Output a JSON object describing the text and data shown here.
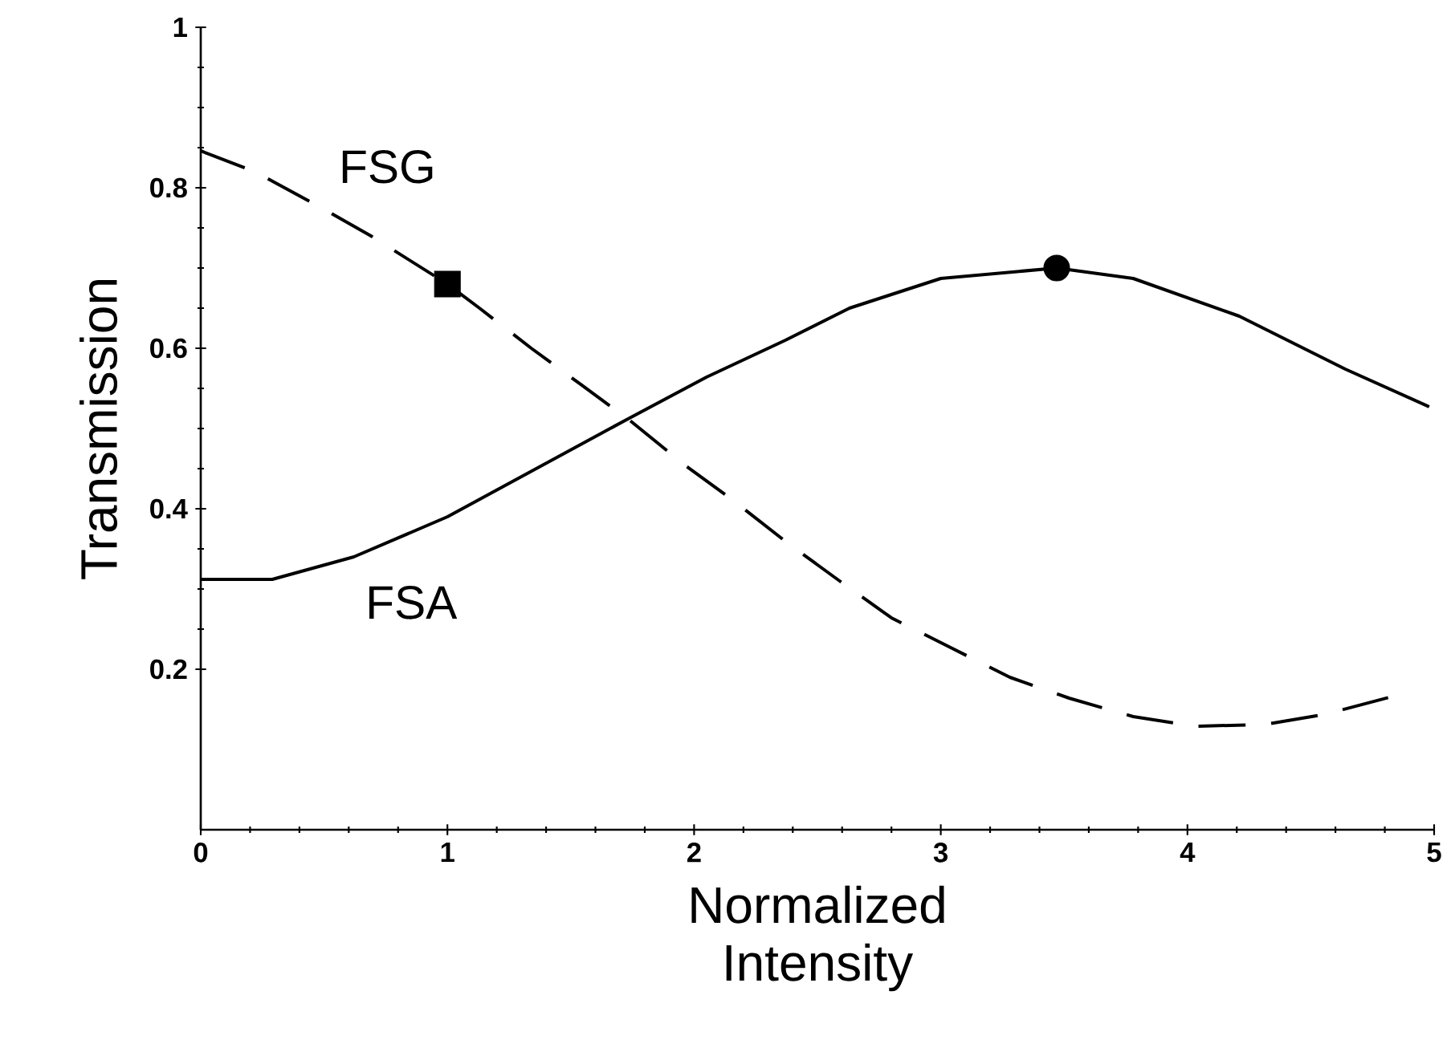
{
  "chart_data": {
    "type": "line",
    "xlabel": "Normalized Intensity",
    "ylabel": "Transmission",
    "xlim": [
      0,
      5
    ],
    "ylim": [
      0,
      1
    ],
    "xticks": [
      0,
      1,
      2,
      3,
      4,
      5
    ],
    "yticks": [
      0.2,
      0.4,
      0.6,
      0.8,
      1
    ],
    "series": [
      {
        "name": "FSG",
        "line_style": "dashed",
        "marker": "none",
        "color": "#000000",
        "x": [
          0,
          0.22,
          0.46,
          0.69,
          1.0,
          1.13,
          1.34,
          1.54,
          1.74,
          1.96,
          2.16,
          2.38,
          2.59,
          2.8,
          3.04,
          3.28,
          3.52,
          3.78,
          4.03,
          4.31,
          4.56,
          4.83
        ],
        "values": [
          0.846,
          0.82,
          0.78,
          0.74,
          0.68,
          0.65,
          0.6,
          0.555,
          0.51,
          0.455,
          0.41,
          0.357,
          0.31,
          0.264,
          0.227,
          0.19,
          0.164,
          0.141,
          0.129,
          0.131,
          0.144,
          0.166
        ]
      },
      {
        "name": "FSA",
        "line_style": "solid",
        "marker": "none",
        "color": "#000000",
        "x": [
          0,
          0.29,
          0.62,
          1.0,
          1.72,
          2.05,
          2.37,
          2.63,
          3.0,
          3.47,
          3.78,
          4.21,
          4.64,
          4.98
        ],
        "values": [
          0.312,
          0.312,
          0.34,
          0.39,
          0.51,
          0.564,
          0.61,
          0.65,
          0.687,
          0.7,
          0.687,
          0.64,
          0.574,
          0.527
        ]
      },
      {
        "type": "scatter",
        "marker": "square",
        "color": "#000000",
        "x": [
          1.0
        ],
        "values": [
          0.68
        ]
      },
      {
        "type": "scatter",
        "marker": "circle",
        "color": "#000000",
        "x": [
          3.47
        ],
        "values": [
          0.7
        ]
      }
    ]
  }
}
